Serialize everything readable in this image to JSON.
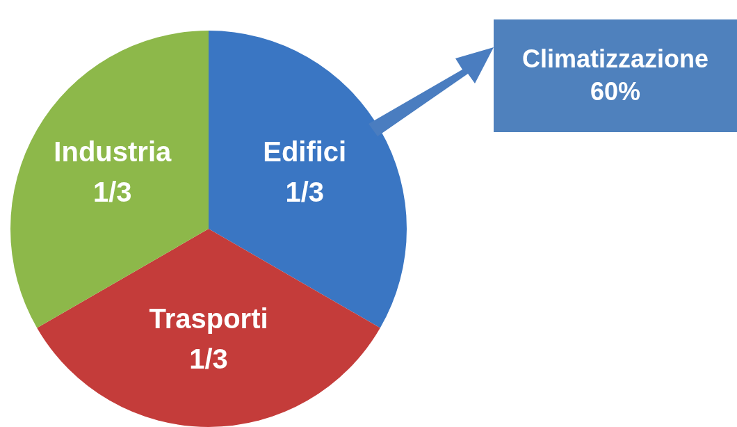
{
  "chart_data": {
    "type": "pie",
    "categories": [
      "Edifici",
      "Trasporti",
      "Industria"
    ],
    "values": [
      0.3333,
      0.3333,
      0.3333
    ],
    "value_labels": [
      "1/3",
      "1/3",
      "1/3"
    ],
    "colors": [
      "#3a76c3",
      "#c43c3a",
      "#8db84a"
    ],
    "legend": false,
    "annotations": [
      "Climatizzazione",
      "60%"
    ]
  }
}
